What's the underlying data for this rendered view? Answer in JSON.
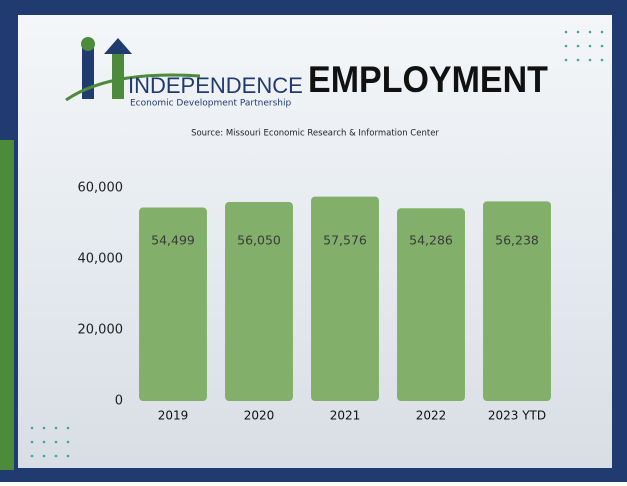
{
  "chart_data": {
    "type": "bar",
    "title": "EMPLOYMENT",
    "logo_name": "INDEPENDENCE",
    "logo_subtitle": "Economic Development Partnership",
    "subtitle": "Source: Missouri Economic Research & Information Center",
    "categories": [
      "2019",
      "2020",
      "2021",
      "2022",
      "2023 YTD"
    ],
    "values": [
      54499,
      56050,
      57576,
      54286,
      56238
    ],
    "value_labels": [
      "54,499",
      "56,050",
      "57,576",
      "54,286",
      "56,238"
    ],
    "color": "#82b06a",
    "ylim": [
      0,
      60000
    ],
    "yticks": [
      0,
      {
        "value": 20000,
        "label": "20,000"
      },
      {
        "value": 40000,
        "label": "40,000"
      },
      {
        "value": 60000,
        "label": "60,000"
      }
    ],
    "grid": false
  }
}
